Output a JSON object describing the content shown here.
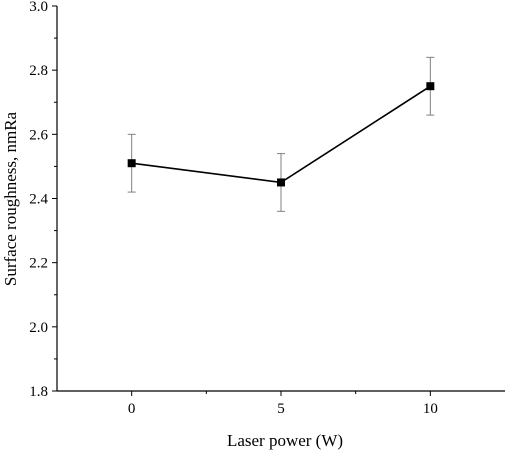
{
  "chart_data": {
    "type": "line",
    "xlabel": "Laser power (W)",
    "ylabel": "Surface roughness, nmRa",
    "xlim": [
      -2.5,
      12.5
    ],
    "ylim": [
      1.8,
      3.0
    ],
    "x_ticks": [
      0,
      5,
      10
    ],
    "x_tick_labels": [
      "0",
      "5",
      "10"
    ],
    "x_minor_ticks": [
      2.5,
      7.5
    ],
    "y_ticks": [
      1.8,
      2.0,
      2.2,
      2.4,
      2.6,
      2.8,
      3.0
    ],
    "y_tick_labels": [
      "1.8",
      "2.0",
      "2.2",
      "2.4",
      "2.6",
      "2.8",
      "3.0"
    ],
    "y_minor_ticks": [
      1.9,
      2.1,
      2.3,
      2.5,
      2.7,
      2.9
    ],
    "grid": false,
    "series": [
      {
        "x": [
          0,
          5,
          10
        ],
        "y": [
          2.51,
          2.45,
          2.75
        ],
        "error": [
          0.09,
          0.09,
          0.09
        ],
        "marker": "square",
        "color": "#000000",
        "error_color": "#808080"
      }
    ]
  }
}
